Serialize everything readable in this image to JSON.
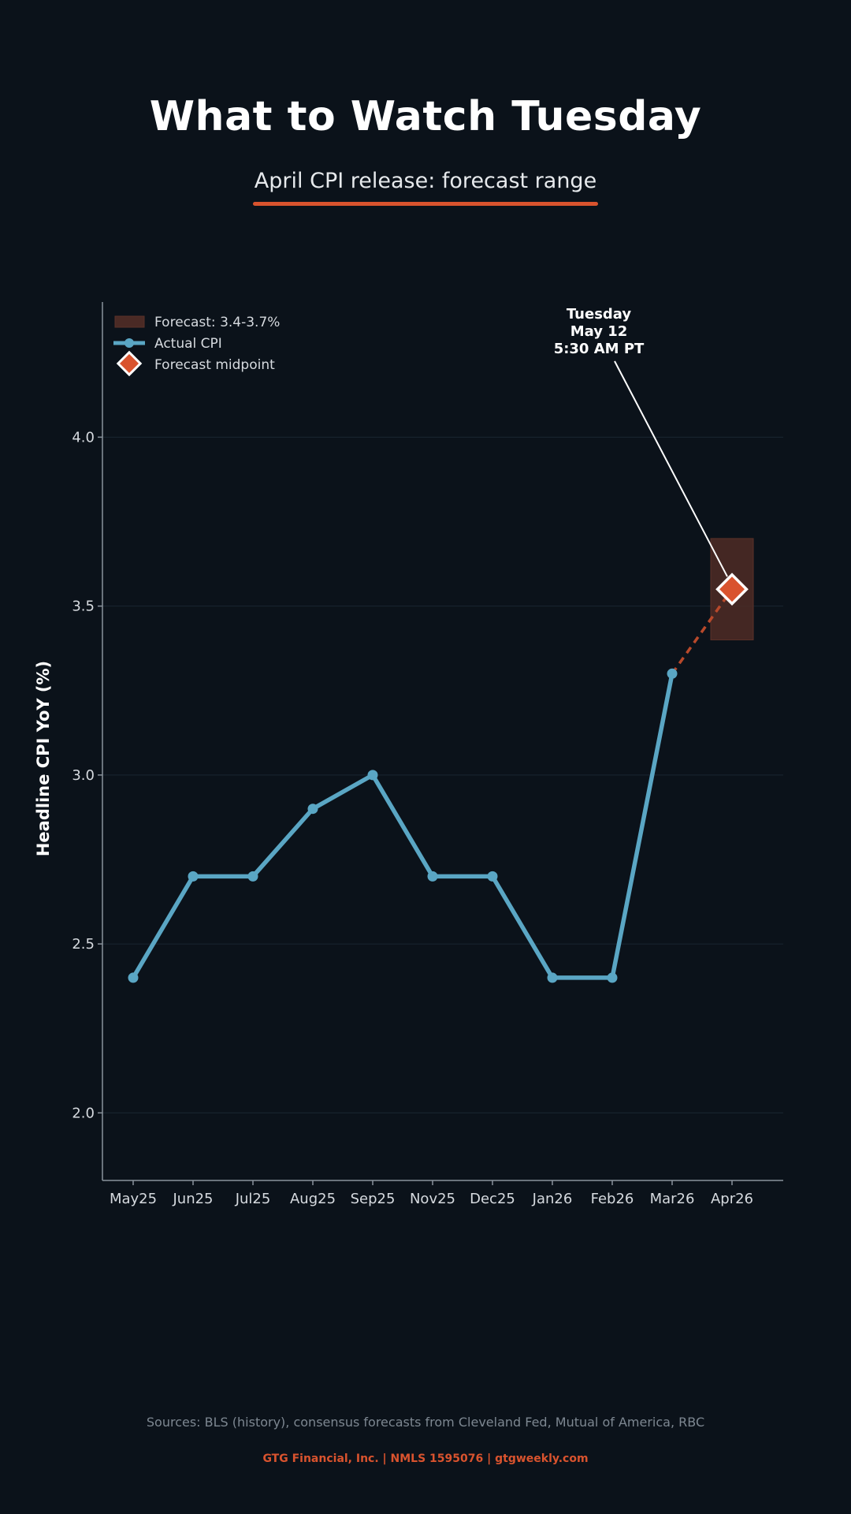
{
  "header": {
    "title": "What to Watch Tuesday",
    "subtitle": "April CPI release: forecast range"
  },
  "chart_data": {
    "type": "line",
    "title": "",
    "xlabel": "",
    "ylabel": "Headline CPI YoY (%)",
    "categories": [
      "May25",
      "Jun25",
      "Jul25",
      "Aug25",
      "Sep25",
      "Nov25",
      "Dec25",
      "Jan26",
      "Feb26",
      "Mar26",
      "Apr26"
    ],
    "y_ticks": [
      "2.0",
      "2.5",
      "3.0",
      "3.5",
      "4.0"
    ],
    "ylim": [
      1.8,
      4.4
    ],
    "grid": true,
    "legend_position": "top-left",
    "series": [
      {
        "name": "Actual CPI",
        "color": "#5aa6c4",
        "values": [
          2.4,
          2.7,
          2.7,
          2.9,
          3.0,
          2.7,
          2.7,
          2.4,
          2.4,
          3.3,
          null
        ]
      },
      {
        "name": "Forecast midpoint",
        "color": "#d9532e",
        "category": "Apr26",
        "value": 3.55
      }
    ],
    "forecast_range": {
      "label": "Forecast: 3.4-3.7%",
      "category": "Apr26",
      "low": 3.4,
      "high": 3.7,
      "color": "#4a2a25"
    },
    "annotation": {
      "lines": [
        "Tuesday",
        "May 12",
        "5:30 AM PT"
      ],
      "target_category": "Apr26",
      "target_value": 3.55
    }
  },
  "footer": {
    "sources": "Sources: BLS (history), consensus forecasts from Cleveland Fed, Mutual of America, RBC",
    "company": "GTG Financial, Inc. | NMLS 1595076 | gtgweekly.com"
  },
  "colors": {
    "background": "#0b121a",
    "accent": "#d9532e",
    "actual": "#5aa6c4",
    "grid": "#1b2632"
  }
}
